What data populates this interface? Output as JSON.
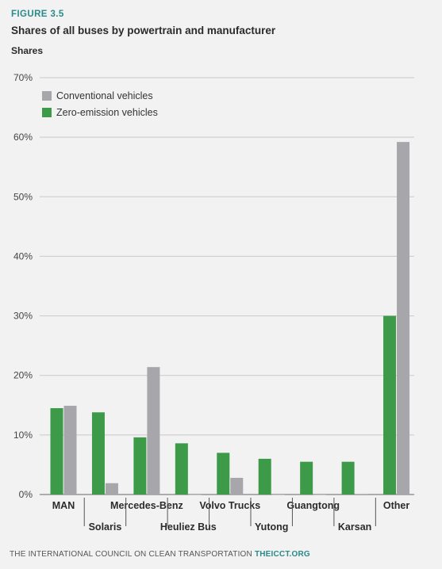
{
  "figure_label": "FIGURE 3.5",
  "title": "Shares of all buses by powertrain and manufacturer",
  "ylabel": "Shares",
  "footer": {
    "text": "THE INTERNATIONAL COUNCIL ON CLEAN TRANSPORTATION",
    "link": "THEICCT.ORG"
  },
  "colors": {
    "conventional": "#a7a6ab",
    "zero_emission": "#3c9a48",
    "grid": "#c9c9c9"
  },
  "chart_data": {
    "type": "bar",
    "categories": [
      "MAN",
      "Solaris",
      "Mercedes-Benz",
      "Heuliez Bus",
      "Volvo Trucks",
      "Yutong",
      "Guangtong",
      "Karsan",
      "Other"
    ],
    "series": [
      {
        "name": "Zero-emission vehicles",
        "values": [
          14.5,
          13.8,
          9.6,
          8.6,
          7.0,
          6.0,
          5.5,
          5.5,
          30.0
        ]
      },
      {
        "name": "Conventional vehicles",
        "values": [
          14.9,
          1.9,
          21.4,
          0.0,
          2.8,
          0.0,
          0.0,
          0.1,
          59.2
        ]
      }
    ],
    "ylim": [
      0,
      70
    ],
    "yticks": [
      "0%",
      "10%",
      "20%",
      "30%",
      "40%",
      "50%",
      "60%",
      "70%"
    ],
    "legend": [
      "Conventional vehicles",
      "Zero-emission vehicles"
    ],
    "legend_position": "top-left",
    "grid": true
  }
}
